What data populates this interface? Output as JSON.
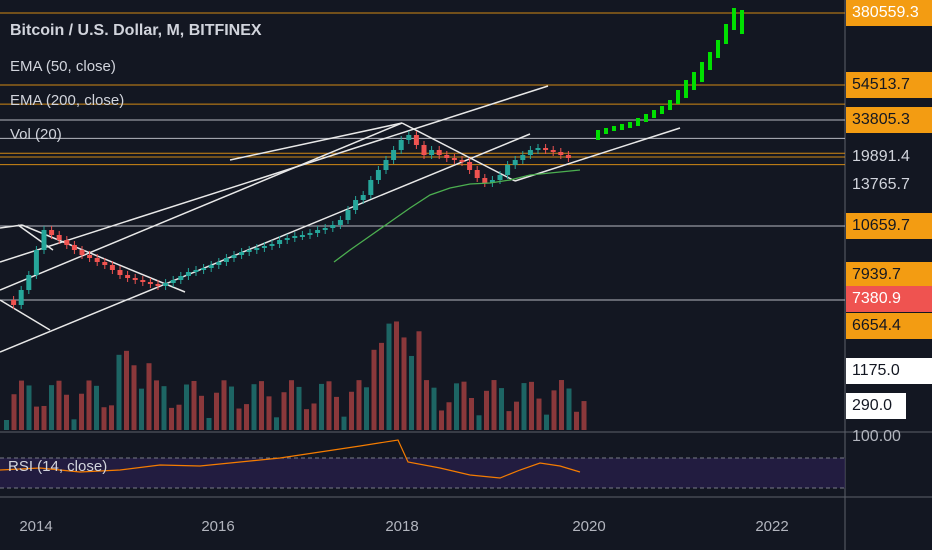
{
  "chart_data": {
    "type": "candlestick",
    "title": "Bitcoin / U.S. Dollar, M, BITFINEX",
    "indicators": [
      "EMA (50, close)",
      "EMA (200, close)",
      "Vol (20)"
    ],
    "rsi_label": "RSI (14, close)",
    "rsi_level": "100.00",
    "x_ticks": [
      "2014",
      "2016",
      "2018",
      "2020",
      "2022"
    ],
    "price_tags": [
      {
        "label": "380559.3",
        "bg": "#f39c12",
        "fg": "#ffffff"
      },
      {
        "label": "54513.7",
        "bg": "#f39c12",
        "fg": "#131722"
      },
      {
        "label": "33805.3",
        "bg": "#f39c12",
        "fg": "#131722"
      },
      {
        "label": "19891.4",
        "bg": "#131722",
        "fg": "#d1d4dc"
      },
      {
        "label": "13765.7",
        "bg": "#131722",
        "fg": "#d1d4dc"
      },
      {
        "label": "10659.7",
        "bg": "#f39c12",
        "fg": "#131722"
      },
      {
        "label": "7939.7",
        "bg": "#f39c12",
        "fg": "#131722"
      },
      {
        "label": "7380.9",
        "bg": "#ef5350",
        "fg": "#ffffff"
      },
      {
        "label": "6654.4",
        "bg": "#f39c12",
        "fg": "#131722"
      },
      {
        "label": "1175.0",
        "bg": "#ffffff",
        "fg": "#131722"
      },
      {
        "label": "290.0",
        "bg": "#ffffff",
        "fg": "#131722"
      }
    ],
    "horizontal_levels": [
      {
        "price": 380559.3,
        "color": "#f39c12"
      },
      {
        "price": 54513.7,
        "color": "#f39c12"
      },
      {
        "price": 42000,
        "color": "#f39c12"
      },
      {
        "price": 33805.3,
        "color": "#d1d4dc"
      },
      {
        "price": 26000,
        "color": "#d1d4dc"
      },
      {
        "price": 21000,
        "color": "#f39c12"
      },
      {
        "price": 19891.4,
        "color": "#f39c12"
      },
      {
        "price": 18000,
        "color": "#f39c12"
      },
      {
        "price": 10659.7,
        "color": "#d1d4dc"
      },
      {
        "price": 6654.4,
        "color": "#d1d4dc"
      }
    ],
    "colors": {
      "up": "#26a69a",
      "down": "#ef5350",
      "projection": "#00e000",
      "ema": "#4caf50",
      "rsi": "#f57c00",
      "level": "#f39c12"
    }
  }
}
